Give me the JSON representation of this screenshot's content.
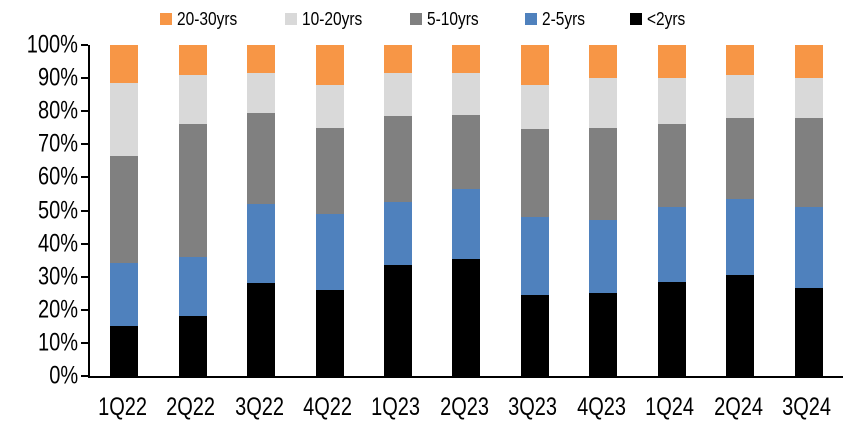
{
  "chart_data": {
    "type": "bar",
    "stacked": true,
    "percent_stacked": true,
    "title": "",
    "xlabel": "",
    "ylabel": "",
    "grid": false,
    "legend_position": "top",
    "ylim": [
      0,
      100
    ],
    "y_tick_labels": [
      "100%",
      "90%",
      "80%",
      "70%",
      "60%",
      "50%",
      "40%",
      "30%",
      "20%",
      "10%",
      "0%"
    ],
    "categories": [
      "1Q22",
      "2Q22",
      "3Q22",
      "4Q22",
      "1Q23",
      "2Q23",
      "3Q23",
      "4Q23",
      "1Q24",
      "2Q24",
      "3Q24"
    ],
    "series": [
      {
        "name": "<2yrs",
        "color": "#000000",
        "values": [
          15.0,
          18.0,
          28.0,
          26.0,
          33.5,
          35.5,
          24.5,
          25.0,
          28.5,
          30.5,
          26.5
        ]
      },
      {
        "name": "2-5yrs",
        "color": "#4F81BD",
        "values": [
          19.0,
          18.0,
          24.0,
          23.0,
          19.0,
          21.0,
          23.5,
          22.0,
          22.5,
          23.0,
          24.5
        ]
      },
      {
        "name": "5-10yrs",
        "color": "#808080",
        "values": [
          32.5,
          40.0,
          27.5,
          26.0,
          26.0,
          22.5,
          26.5,
          28.0,
          25.0,
          24.5,
          27.0
        ]
      },
      {
        "name": "10-20yrs",
        "color": "#D9D9D9",
        "values": [
          22.0,
          15.0,
          12.0,
          13.0,
          13.0,
          12.5,
          13.5,
          15.0,
          14.0,
          13.0,
          12.0
        ]
      },
      {
        "name": "20-30yrs",
        "color": "#F79646",
        "values": [
          11.5,
          9.0,
          8.5,
          12.0,
          8.5,
          8.5,
          12.0,
          10.0,
          10.0,
          9.0,
          10.0
        ]
      }
    ],
    "legend_order": [
      "20-30yrs",
      "10-20yrs",
      "5-10yrs",
      "2-5yrs",
      "<2yrs"
    ],
    "axis_color": "#000000",
    "text_color": "#000000",
    "background_color": "#FFFFFF"
  }
}
